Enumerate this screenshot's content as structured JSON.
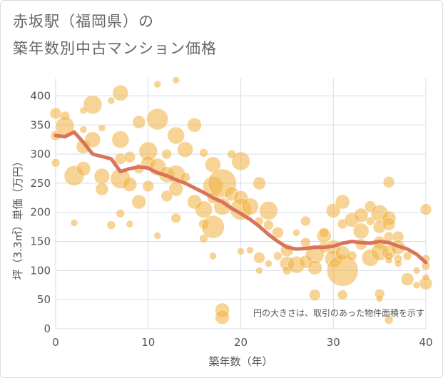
{
  "chart_data": {
    "type": "scatter",
    "title_line1": "赤坂駅（福岡県）の",
    "title_line2": "築年数別中古マンション価格",
    "xlabel": "築年数（年）",
    "ylabel": "坪（3.3㎡）単価（万円）",
    "xlim": [
      0,
      40
    ],
    "ylim": [
      0,
      430
    ],
    "xticks": [
      0,
      10,
      20,
      30,
      40
    ],
    "yticks": [
      0,
      50,
      100,
      150,
      200,
      250,
      300,
      350,
      400
    ],
    "grid": true,
    "annotation": "円の大きさは、取引のあった物件面積を示す",
    "bubble_color": "#f0b040",
    "trend_color": "#d9735a",
    "bubbles": [
      [
        0,
        370,
        8
      ],
      [
        0,
        332,
        7
      ],
      [
        0,
        285,
        6
      ],
      [
        1,
        348,
        13
      ],
      [
        1,
        365,
        7
      ],
      [
        2,
        263,
        14
      ],
      [
        2,
        182,
        5
      ],
      [
        3,
        313,
        10
      ],
      [
        3,
        275,
        10
      ],
      [
        3,
        375,
        5
      ],
      [
        3,
        342,
        5
      ],
      [
        4,
        385,
        13
      ],
      [
        4,
        325,
        11
      ],
      [
        5,
        262,
        11
      ],
      [
        5,
        240,
        9
      ],
      [
        5,
        345,
        5
      ],
      [
        6,
        178,
        6
      ],
      [
        6,
        392,
        5
      ],
      [
        7,
        405,
        11
      ],
      [
        7,
        325,
        12
      ],
      [
        7,
        292,
        8
      ],
      [
        7,
        258,
        14
      ],
      [
        7,
        198,
        6
      ],
      [
        8,
        180,
        5
      ],
      [
        8,
        248,
        10
      ],
      [
        8,
        295,
        8
      ],
      [
        9,
        355,
        9
      ],
      [
        9,
        218,
        10
      ],
      [
        9,
        275,
        7
      ],
      [
        10,
        305,
        13
      ],
      [
        10,
        285,
        10
      ],
      [
        10,
        245,
        8
      ],
      [
        11,
        360,
        15
      ],
      [
        11,
        420,
        5
      ],
      [
        11,
        278,
        12
      ],
      [
        11,
        160,
        5
      ],
      [
        12,
        265,
        11
      ],
      [
        12,
        228,
        8
      ],
      [
        12,
        300,
        7
      ],
      [
        13,
        332,
        12
      ],
      [
        13,
        265,
        13
      ],
      [
        13,
        240,
        10
      ],
      [
        13,
        190,
        7
      ],
      [
        13,
        427,
        5
      ],
      [
        14,
        308,
        11
      ],
      [
        14,
        260,
        7
      ],
      [
        15,
        350,
        10
      ],
      [
        15,
        218,
        10
      ],
      [
        16,
        205,
        12
      ],
      [
        16,
        180,
        7
      ],
      [
        16,
        302,
        6
      ],
      [
        16,
        155,
        6
      ],
      [
        17,
        282,
        11
      ],
      [
        17,
        245,
        14
      ],
      [
        17,
        175,
        16
      ],
      [
        17,
        225,
        8
      ],
      [
        17,
        125,
        5
      ],
      [
        18,
        250,
        20
      ],
      [
        18,
        210,
        12
      ],
      [
        18,
        32,
        10
      ],
      [
        18,
        20,
        10
      ],
      [
        19,
        232,
        10
      ],
      [
        19,
        300,
        6
      ],
      [
        20,
        288,
        13
      ],
      [
        20,
        205,
        15
      ],
      [
        20,
        225,
        10
      ],
      [
        20,
        133,
        5
      ],
      [
        21,
        210,
        12
      ],
      [
        21,
        135,
        5
      ],
      [
        22,
        250,
        9
      ],
      [
        22,
        122,
        8
      ],
      [
        22,
        185,
        6
      ],
      [
        22,
        100,
        5
      ],
      [
        23,
        203,
        13
      ],
      [
        23,
        178,
        7
      ],
      [
        23,
        112,
        5
      ],
      [
        24,
        165,
        8
      ],
      [
        24,
        125,
        6
      ],
      [
        25,
        135,
        9
      ],
      [
        25,
        112,
        10
      ],
      [
        25,
        100,
        6
      ],
      [
        26,
        110,
        12
      ],
      [
        26,
        165,
        5
      ],
      [
        27,
        185,
        7
      ],
      [
        27,
        115,
        9
      ],
      [
        27,
        148,
        7
      ],
      [
        28,
        128,
        13
      ],
      [
        28,
        105,
        10
      ],
      [
        28,
        58,
        8
      ],
      [
        29,
        160,
        10
      ],
      [
        29,
        140,
        8
      ],
      [
        29,
        165,
        7
      ],
      [
        30,
        203,
        10
      ],
      [
        30,
        140,
        10
      ],
      [
        30,
        120,
        12
      ],
      [
        31,
        100,
        22
      ],
      [
        31,
        218,
        10
      ],
      [
        31,
        180,
        7
      ],
      [
        31,
        130,
        10
      ],
      [
        31,
        58,
        7
      ],
      [
        32,
        187,
        10
      ],
      [
        32,
        125,
        7
      ],
      [
        33,
        195,
        10
      ],
      [
        33,
        168,
        11
      ],
      [
        33,
        145,
        8
      ],
      [
        34,
        210,
        8
      ],
      [
        34,
        122,
        12
      ],
      [
        34,
        185,
        6
      ],
      [
        35,
        198,
        12
      ],
      [
        35,
        175,
        9
      ],
      [
        35,
        148,
        9
      ],
      [
        35,
        132,
        12
      ],
      [
        35,
        60,
        7
      ],
      [
        35,
        52,
        5
      ],
      [
        36,
        252,
        8
      ],
      [
        36,
        190,
        10
      ],
      [
        36,
        180,
        9
      ],
      [
        36,
        158,
        7
      ],
      [
        36,
        132,
        10
      ],
      [
        36,
        125,
        6
      ],
      [
        36,
        118,
        5
      ],
      [
        36,
        15,
        6
      ],
      [
        37,
        158,
        8
      ],
      [
        37,
        140,
        10
      ],
      [
        37,
        120,
        6
      ],
      [
        37,
        112,
        5
      ],
      [
        38,
        85,
        9
      ],
      [
        38,
        125,
        6
      ],
      [
        39,
        75,
        5
      ],
      [
        39,
        100,
        5
      ],
      [
        40,
        205,
        8
      ],
      [
        40,
        78,
        9
      ],
      [
        40,
        108,
        6
      ],
      [
        40,
        88,
        5
      ],
      [
        40,
        120,
        6
      ]
    ],
    "trend_x": [
      0,
      1,
      2,
      3,
      4,
      5,
      6,
      7,
      8,
      9,
      10,
      11,
      12,
      13,
      14,
      15,
      16,
      17,
      18,
      19,
      20,
      21,
      22,
      23,
      24,
      25,
      26,
      27,
      28,
      29,
      30,
      31,
      32,
      33,
      34,
      35,
      36,
      37,
      38,
      39,
      40
    ],
    "trend_y": [
      332,
      330,
      338,
      320,
      300,
      296,
      292,
      270,
      275,
      278,
      276,
      268,
      263,
      256,
      250,
      242,
      234,
      225,
      218,
      207,
      198,
      188,
      176,
      162,
      150,
      140,
      137,
      138,
      140,
      140,
      142,
      147,
      150,
      148,
      147,
      150,
      148,
      142,
      137,
      128,
      114
    ]
  }
}
